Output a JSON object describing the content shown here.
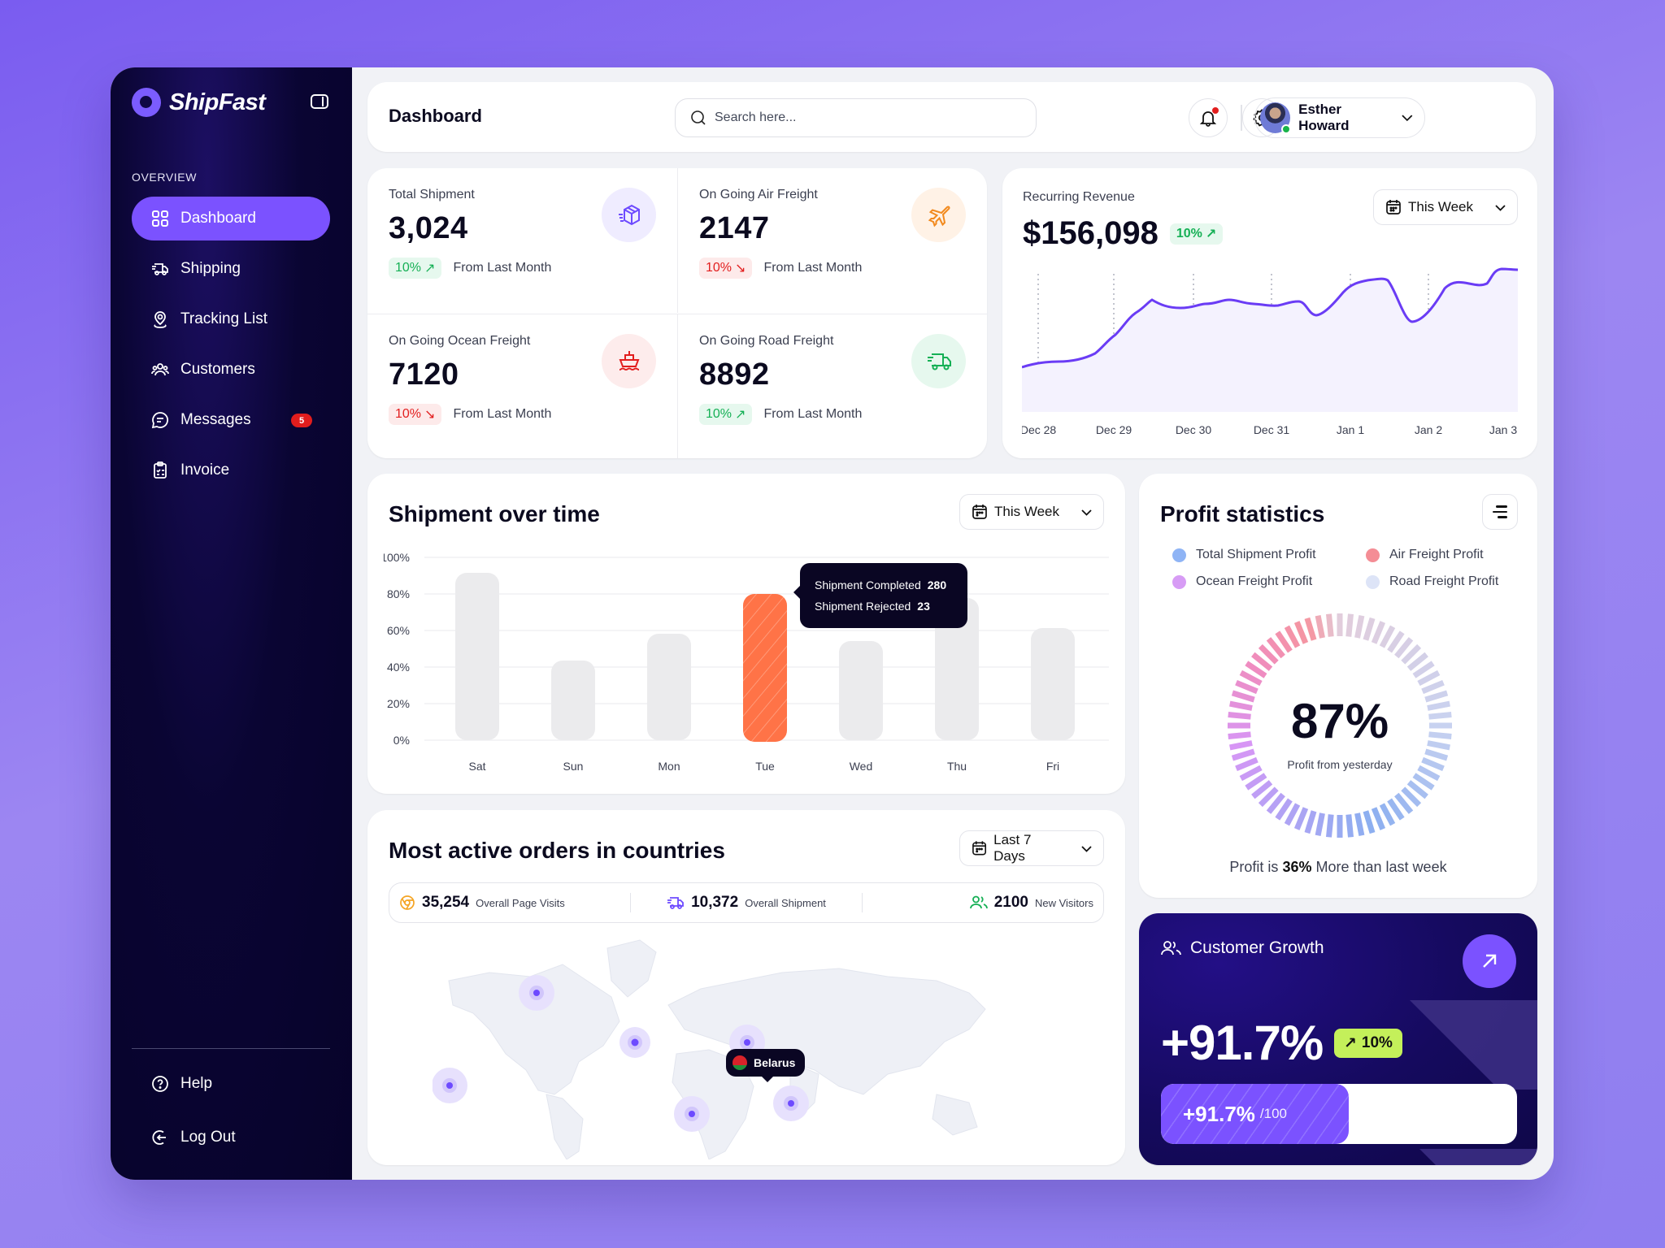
{
  "app": {
    "name": "ShipFast"
  },
  "sidebar": {
    "section_label": "OVERVIEW",
    "items": [
      {
        "label": "Dashboard",
        "icon": "grid-icon",
        "active": true
      },
      {
        "label": "Shipping",
        "icon": "truck-icon"
      },
      {
        "label": "Tracking List",
        "icon": "location-pin-icon"
      },
      {
        "label": "Customers",
        "icon": "users-icon"
      },
      {
        "label": "Messages",
        "icon": "chat-icon",
        "badge": "5"
      },
      {
        "label": "Invoice",
        "icon": "clipboard-icon"
      }
    ],
    "bottom_items": [
      {
        "label": "Help",
        "icon": "help-circle-icon"
      },
      {
        "label": "Log Out",
        "icon": "logout-icon"
      }
    ]
  },
  "header": {
    "title": "Dashboard",
    "search_placeholder": "Search here...",
    "user_name": "Esther Howard"
  },
  "stats": [
    {
      "label": "Total Shipment",
      "value": "3,024",
      "change": "10%",
      "direction": "up",
      "foot": "From Last Month",
      "icon": "box-icon",
      "color": "#6d4aff"
    },
    {
      "label": "On Going Air Freight",
      "value": "2147",
      "change": "10%",
      "direction": "down",
      "foot": "From Last Month",
      "icon": "plane-icon",
      "color": "#f28a1e"
    },
    {
      "label": "On Going Ocean Freight",
      "value": "7120",
      "change": "10%",
      "direction": "down",
      "foot": "From Last Month",
      "icon": "ship-icon",
      "color": "#e21e1e"
    },
    {
      "label": "On Going Road Freight",
      "value": "8892",
      "change": "10%",
      "direction": "up",
      "foot": "From Last Month",
      "icon": "truck-icon",
      "color": "#15b055"
    }
  ],
  "revenue": {
    "label": "Recurring Revenue",
    "value": "$156,098",
    "change": "10%",
    "range": "This Week"
  },
  "shipment_chart": {
    "title": "Shipment over time",
    "range": "This Week",
    "tooltip": {
      "completed_label": "Shipment Completed",
      "completed_value": "280",
      "rejected_label": "Shipment Rejected",
      "rejected_value": "23"
    }
  },
  "profit": {
    "title": "Profit statistics",
    "legend": [
      {
        "label": "Total Shipment Profit",
        "color": "#8fb4f5"
      },
      {
        "label": "Air Freight Profit",
        "color": "#f48d95"
      },
      {
        "label": "Ocean Freight Profit",
        "color": "#d79cf5"
      },
      {
        "label": "Road Freight Profit",
        "color": "#dde4f7"
      }
    ],
    "value": "87%",
    "sub": "Profit from yesterday",
    "foot_pre": "Profit is",
    "foot_bold": "36%",
    "foot_post": "More than last week"
  },
  "orders": {
    "title": "Most active orders in countries",
    "range": "Last 7 Days",
    "summary": [
      {
        "value": "35,254",
        "label": "Overall Page Visits",
        "icon": "chrome-icon"
      },
      {
        "value": "10,372",
        "label": "Overall Shipment",
        "icon": "truck-icon"
      },
      {
        "value": "2100",
        "label": "New Visitors",
        "icon": "users-icon"
      }
    ],
    "highlight_country": "Belarus"
  },
  "growth": {
    "title": "Customer Growth",
    "value": "+91.7%",
    "change": "10%",
    "progress_value": "+91.7%",
    "progress_max": "/100"
  },
  "chart_data": [
    {
      "type": "area",
      "title": "Recurring Revenue",
      "categories": [
        "Dec 28",
        "Dec 29",
        "Dec 30",
        "Dec 31",
        "Jan 1",
        "Jan 2",
        "Jan 3"
      ],
      "values": [
        12,
        56,
        60,
        60,
        72,
        68,
        92
      ],
      "xlabel": "",
      "ylabel": "",
      "grid": "vertical dotted"
    },
    {
      "type": "bar",
      "title": "Shipment over time",
      "categories": [
        "Sat",
        "Sun",
        "Mon",
        "Tue",
        "Wed",
        "Thu",
        "Fri"
      ],
      "values": [
        91,
        44,
        59,
        80,
        55,
        78,
        62
      ],
      "highlight": "Tue",
      "yticks": [
        "0%",
        "20%",
        "40%",
        "60%",
        "80%",
        "100%"
      ],
      "ylim": [
        0,
        100
      ]
    },
    {
      "type": "pie",
      "title": "Profit statistics",
      "categories": [
        "Total Shipment Profit",
        "Air Freight Profit",
        "Ocean Freight Profit",
        "Road Freight Profit"
      ],
      "center_value": "87%"
    }
  ]
}
